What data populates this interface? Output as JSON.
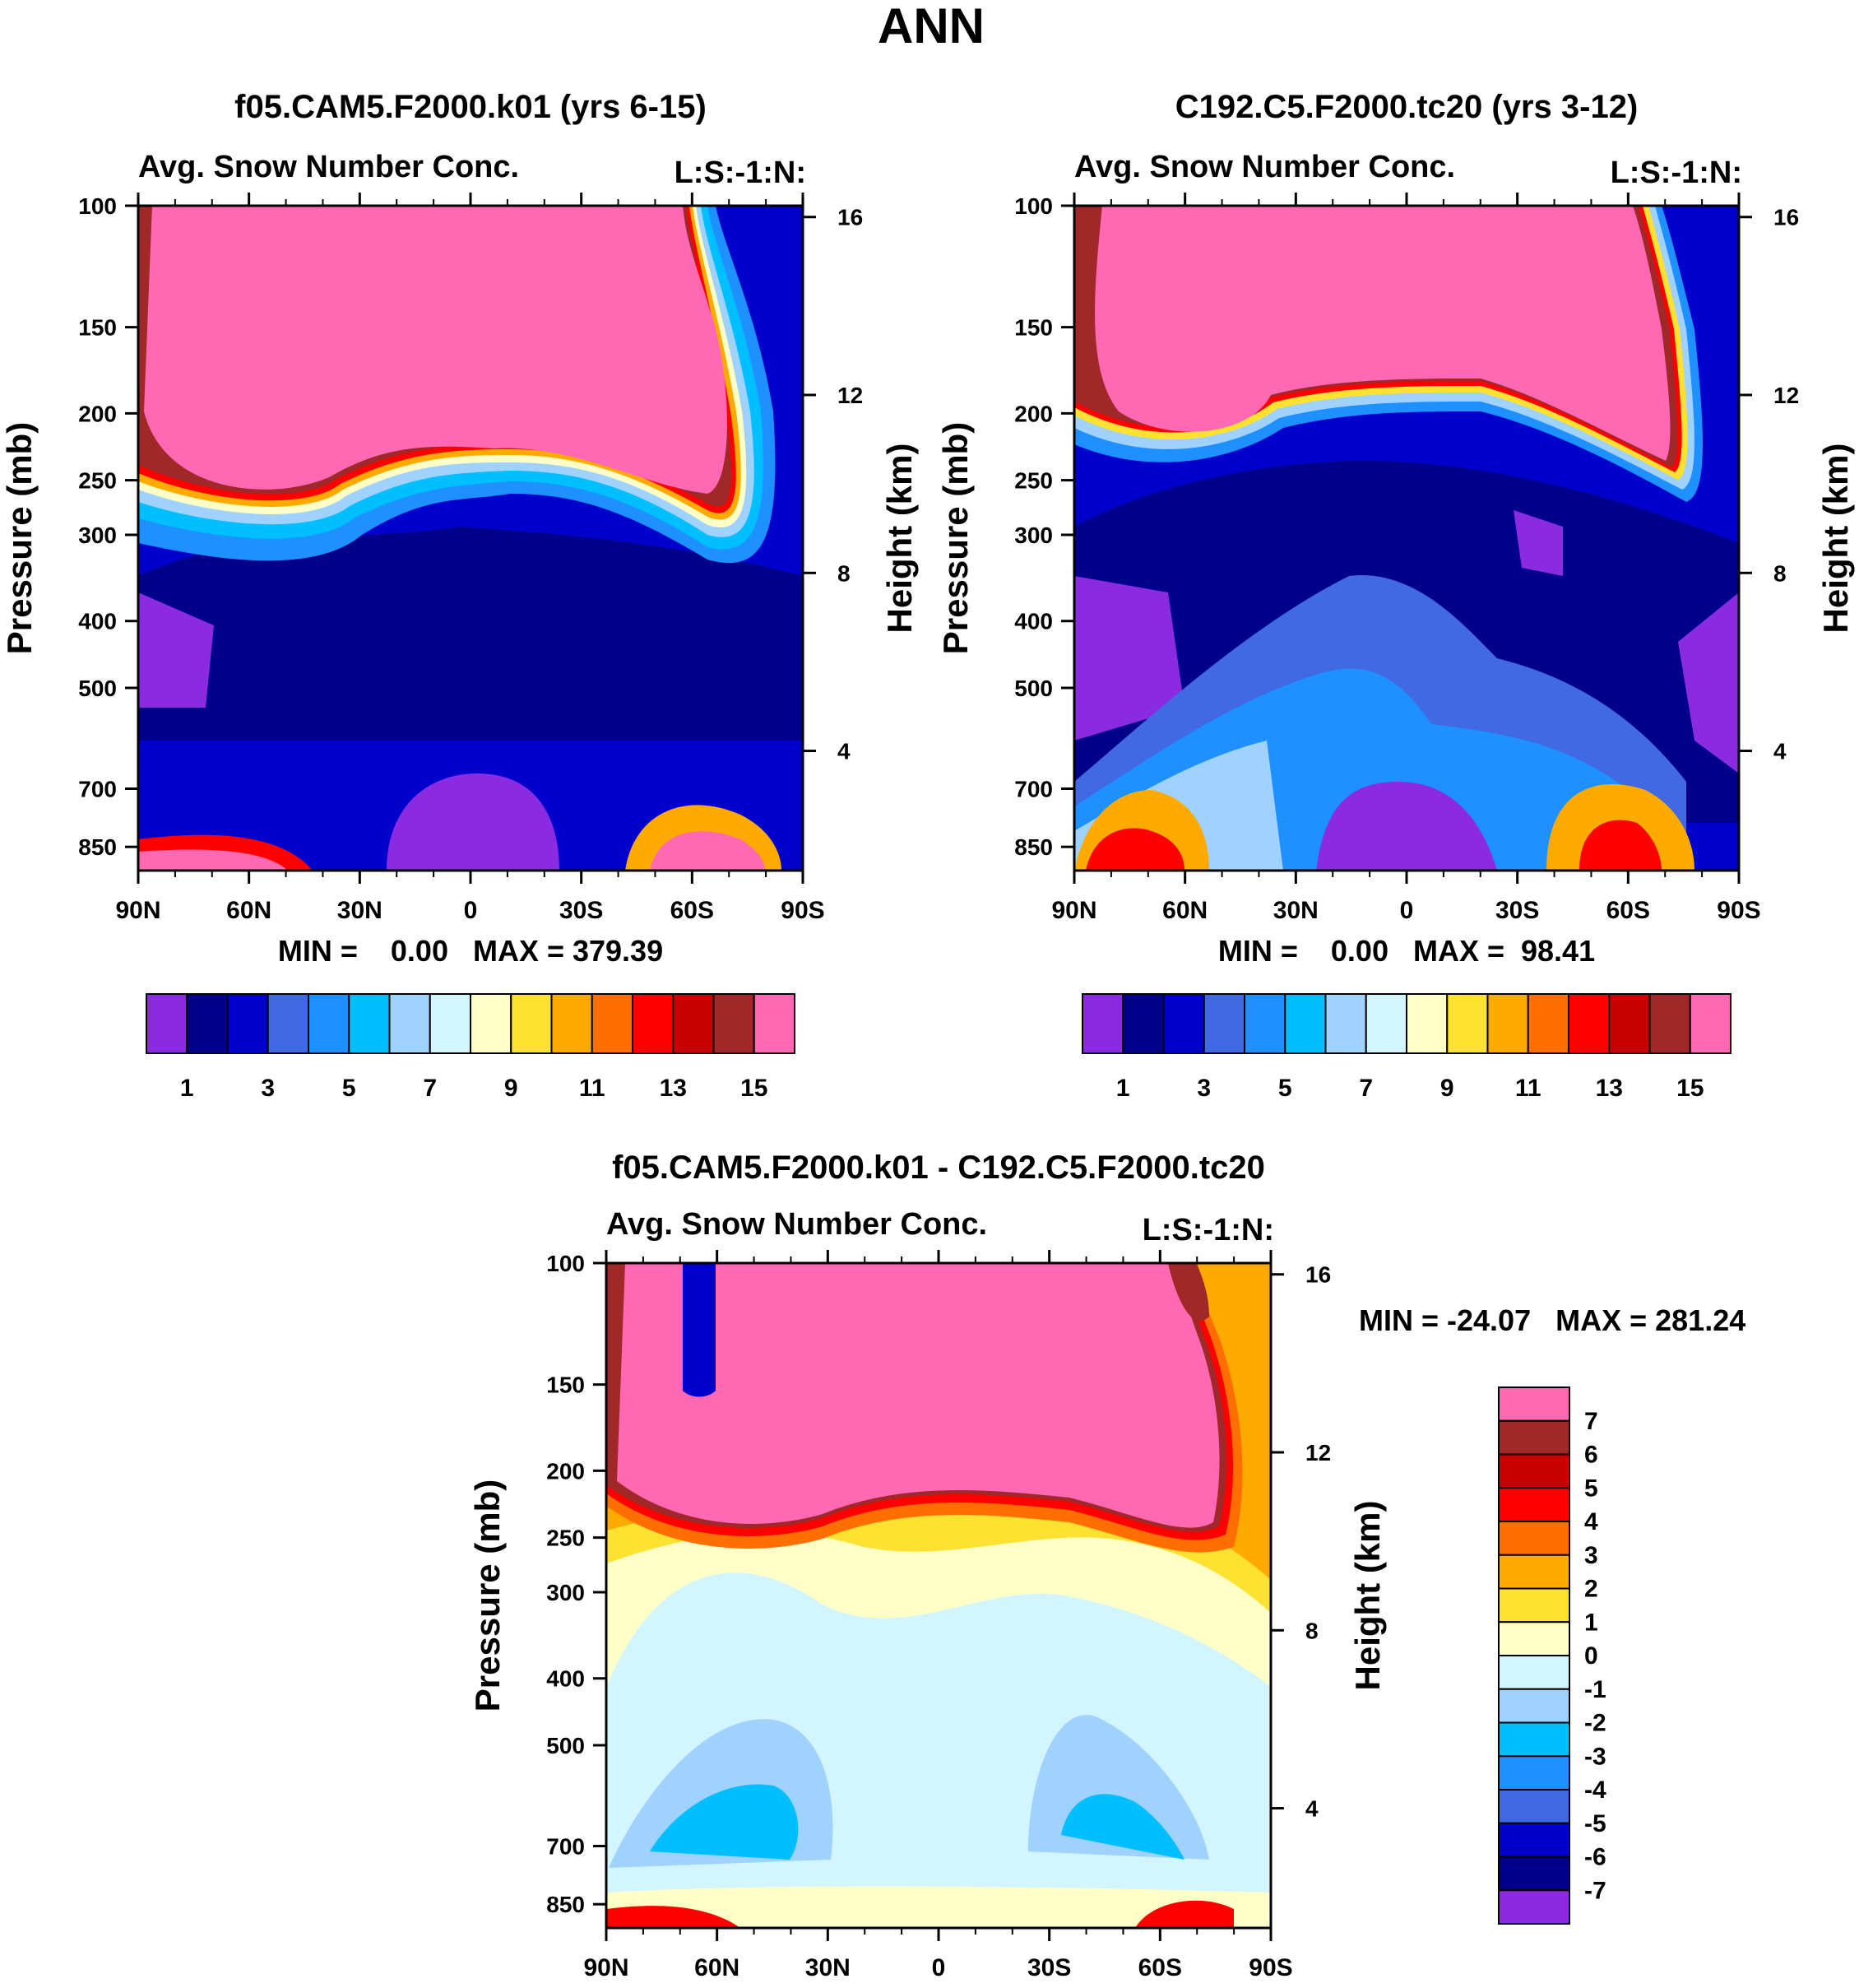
{
  "main_title": "ANN",
  "colors": [
    "#8a2be2",
    "#00008b",
    "#0000cd",
    "#4169e1",
    "#1e90ff",
    "#00bfff",
    "#a0d2ff",
    "#d2f5ff",
    "#ffffc8",
    "#ffe132",
    "#ffaa00",
    "#ff6e00",
    "#ff0000",
    "#c80000",
    "#a02828",
    "#ff69b4"
  ],
  "chart_data": [
    {
      "type": "heatmap",
      "panel": "model-a",
      "title": "f05.CAM5.F2000.k01 (yrs 6-15)",
      "subtitle_left": "Avg. Snow Number Conc.",
      "subtitle_right": "L:S:-1:N:",
      "ylabel": "Pressure (mb)",
      "y2label": "Height (km)",
      "x_ticks": [
        "90N",
        "60N",
        "30N",
        "0",
        "30S",
        "60S",
        "90S"
      ],
      "y_ticks": [
        "100",
        "150",
        "200",
        "250",
        "300",
        "400",
        "500",
        "700",
        "850"
      ],
      "y_ticks_values": [
        100,
        150,
        200,
        250,
        300,
        400,
        500,
        700,
        850
      ],
      "y2_ticks": [
        "16",
        "12",
        "8",
        "4"
      ],
      "y2_ticks_values": [
        16,
        12,
        8,
        4
      ],
      "stats": "MIN =    0.00   MAX = 379.39",
      "colorbar_labels": [
        "1",
        "3",
        "5",
        "7",
        "9",
        "11",
        "13",
        "15"
      ],
      "colorbar_count": 16,
      "bands": [
        {
          "level": 0,
          "shape": "lower-left"
        },
        {
          "level": 15,
          "shape": "upper-blob"
        },
        {
          "level": 15,
          "shape": "surface-blobs"
        }
      ]
    },
    {
      "type": "heatmap",
      "panel": "model-b",
      "title": "C192.C5.F2000.tc20 (yrs 3-12)",
      "subtitle_left": "Avg. Snow Number Conc.",
      "subtitle_right": "L:S:-1:N:",
      "ylabel": "Pressure (mb)",
      "y2label": "Height (km)",
      "x_ticks": [
        "90N",
        "60N",
        "30N",
        "0",
        "30S",
        "60S",
        "90S"
      ],
      "y_ticks": [
        "100",
        "150",
        "200",
        "250",
        "300",
        "400",
        "500",
        "700",
        "850"
      ],
      "y_ticks_values": [
        100,
        150,
        200,
        250,
        300,
        400,
        500,
        700,
        850
      ],
      "y2_ticks": [
        "16",
        "12",
        "8",
        "4"
      ],
      "y2_ticks_values": [
        16,
        12,
        8,
        4
      ],
      "stats": "MIN =    0.00   MAX =  98.41",
      "colorbar_labels": [
        "1",
        "3",
        "5",
        "7",
        "9",
        "11",
        "13",
        "15"
      ],
      "colorbar_count": 16
    },
    {
      "type": "heatmap",
      "panel": "difference",
      "title": "f05.CAM5.F2000.k01 - C192.C5.F2000.tc20",
      "subtitle_left": "Avg. Snow Number Conc.",
      "subtitle_right": "L:S:-1:N:",
      "ylabel": "Pressure (mb)",
      "y2label": "Height (km)",
      "x_ticks": [
        "90N",
        "60N",
        "30N",
        "0",
        "30S",
        "60S",
        "90S"
      ],
      "y_ticks": [
        "100",
        "150",
        "200",
        "250",
        "300",
        "400",
        "500",
        "700",
        "850"
      ],
      "y_ticks_values": [
        100,
        150,
        200,
        250,
        300,
        400,
        500,
        700,
        850
      ],
      "y2_ticks": [
        "16",
        "12",
        "8",
        "4"
      ],
      "y2_ticks_values": [
        16,
        12,
        8,
        4
      ],
      "stats": "MIN = -24.07   MAX = 281.24",
      "colorbar_labels": [
        "7",
        "6",
        "5",
        "4",
        "3",
        "2",
        "1",
        "0",
        "-1",
        "-2",
        "-3",
        "-4",
        "-5",
        "-6",
        "-7"
      ],
      "colorbar_count": 16
    }
  ]
}
